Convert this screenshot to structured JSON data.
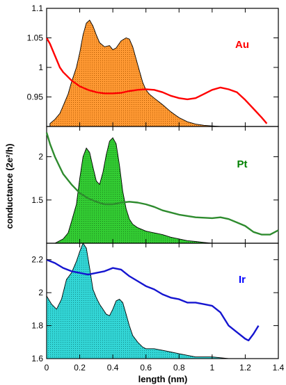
{
  "chart_data": {
    "type": "line",
    "xlabel": "length (nm)",
    "ylabel": "conductance (2e²/h)",
    "x_ticks": [
      "0",
      "0.2",
      "0.4",
      "0.6",
      "0.8",
      "1",
      "1.2",
      "1.4"
    ],
    "xlim": [
      0,
      1.4
    ],
    "panels": [
      {
        "label": "Au",
        "label_color": "#ff0000",
        "line_color": "#ff0000",
        "fill_color": "#ff9933",
        "ylim": [
          0.9,
          1.1
        ],
        "y_ticks": [
          {
            "value": 0.95,
            "label": "0.95"
          },
          {
            "value": 1.0,
            "label": "1"
          },
          {
            "value": 1.05,
            "label": "1.05"
          },
          {
            "value": 1.1,
            "label": "1.1"
          }
        ],
        "conductance": {
          "x": [
            0.0,
            0.02,
            0.05,
            0.08,
            0.1,
            0.15,
            0.2,
            0.25,
            0.3,
            0.35,
            0.4,
            0.45,
            0.5,
            0.55,
            0.6,
            0.65,
            0.7,
            0.75,
            0.8,
            0.85,
            0.9,
            0.95,
            1.0,
            1.05,
            1.1,
            1.15,
            1.2,
            1.25,
            1.3,
            1.33
          ],
          "y": [
            1.05,
            1.04,
            1.02,
            1.0,
            0.992,
            0.978,
            0.968,
            0.962,
            0.958,
            0.956,
            0.956,
            0.957,
            0.96,
            0.962,
            0.963,
            0.962,
            0.958,
            0.952,
            0.948,
            0.946,
            0.948,
            0.955,
            0.962,
            0.966,
            0.963,
            0.958,
            0.945,
            0.93,
            0.915,
            0.905
          ]
        },
        "histogram": {
          "x": [
            0.02,
            0.05,
            0.08,
            0.1,
            0.13,
            0.15,
            0.18,
            0.2,
            0.22,
            0.24,
            0.26,
            0.28,
            0.3,
            0.32,
            0.35,
            0.38,
            0.4,
            0.42,
            0.45,
            0.48,
            0.5,
            0.52,
            0.55,
            0.58,
            0.6,
            0.62,
            0.65,
            0.7,
            0.75,
            0.8,
            0.85,
            0.9,
            0.95,
            1.0,
            1.05
          ],
          "y": [
            0.905,
            0.912,
            0.922,
            0.935,
            0.955,
            0.975,
            1.0,
            1.025,
            1.055,
            1.075,
            1.08,
            1.07,
            1.055,
            1.042,
            1.035,
            1.037,
            1.03,
            1.033,
            1.045,
            1.05,
            1.048,
            1.035,
            1.005,
            0.975,
            0.962,
            0.955,
            0.948,
            0.937,
            0.925,
            0.915,
            0.908,
            0.904,
            0.902,
            0.901,
            0.9
          ]
        }
      },
      {
        "label": "Pt",
        "label_color": "#008000",
        "line_color": "#2e8b2e",
        "fill_color": "#33cc33",
        "ylim": [
          1.0,
          2.35
        ],
        "y_ticks": [
          {
            "value": 1.5,
            "label": "1.5"
          },
          {
            "value": 2.0,
            "label": "2"
          }
        ],
        "conductance": {
          "x": [
            0.0,
            0.02,
            0.05,
            0.08,
            0.1,
            0.15,
            0.2,
            0.25,
            0.3,
            0.35,
            0.4,
            0.45,
            0.5,
            0.55,
            0.6,
            0.65,
            0.7,
            0.8,
            0.9,
            1.0,
            1.05,
            1.1,
            1.15,
            1.2,
            1.25,
            1.3,
            1.35,
            1.4
          ],
          "y": [
            2.28,
            2.15,
            2.0,
            1.88,
            1.8,
            1.68,
            1.58,
            1.52,
            1.48,
            1.45,
            1.45,
            1.47,
            1.48,
            1.47,
            1.45,
            1.42,
            1.38,
            1.33,
            1.3,
            1.29,
            1.3,
            1.28,
            1.24,
            1.2,
            1.13,
            1.1,
            1.1,
            1.15
          ]
        },
        "histogram": {
          "x": [
            0.05,
            0.1,
            0.13,
            0.15,
            0.18,
            0.2,
            0.22,
            0.24,
            0.26,
            0.28,
            0.3,
            0.32,
            0.34,
            0.36,
            0.38,
            0.4,
            0.42,
            0.44,
            0.46,
            0.48,
            0.5,
            0.52,
            0.55,
            0.6,
            0.65,
            0.7,
            0.75,
            0.8,
            0.85,
            0.9,
            0.95,
            1.0
          ],
          "y": [
            1.0,
            1.05,
            1.12,
            1.25,
            1.45,
            1.75,
            2.0,
            2.1,
            2.05,
            1.88,
            1.72,
            1.68,
            1.82,
            2.02,
            2.18,
            2.22,
            2.15,
            1.9,
            1.6,
            1.4,
            1.28,
            1.22,
            1.18,
            1.14,
            1.12,
            1.1,
            1.07,
            1.05,
            1.03,
            1.02,
            1.01,
            1.0
          ]
        }
      },
      {
        "label": "Ir",
        "label_color": "#0000ff",
        "line_color": "#1515d0",
        "fill_color": "#33d6d6",
        "ylim": [
          1.6,
          2.3
        ],
        "y_ticks": [
          {
            "value": 1.6,
            "label": "1.6"
          },
          {
            "value": 1.8,
            "label": "1.8"
          },
          {
            "value": 2.0,
            "label": "2"
          },
          {
            "value": 2.2,
            "label": "2.2"
          }
        ],
        "conductance": {
          "x": [
            0.0,
            0.05,
            0.1,
            0.15,
            0.2,
            0.25,
            0.3,
            0.35,
            0.4,
            0.45,
            0.5,
            0.55,
            0.6,
            0.65,
            0.7,
            0.75,
            0.8,
            0.85,
            0.9,
            0.95,
            1.0,
            1.05,
            1.1,
            1.15,
            1.2,
            1.22,
            1.25,
            1.28
          ],
          "y": [
            2.2,
            2.18,
            2.15,
            2.13,
            2.12,
            2.11,
            2.12,
            2.13,
            2.15,
            2.14,
            2.1,
            2.07,
            2.04,
            2.02,
            1.99,
            1.97,
            1.96,
            1.94,
            1.94,
            1.93,
            1.92,
            1.88,
            1.8,
            1.76,
            1.72,
            1.71,
            1.75,
            1.8
          ]
        },
        "histogram": {
          "x": [
            0.0,
            0.03,
            0.06,
            0.09,
            0.12,
            0.15,
            0.18,
            0.2,
            0.22,
            0.24,
            0.26,
            0.28,
            0.3,
            0.32,
            0.34,
            0.36,
            0.38,
            0.4,
            0.42,
            0.44,
            0.46,
            0.48,
            0.5,
            0.52,
            0.55,
            0.58,
            0.6,
            0.65,
            0.7,
            0.75,
            0.8,
            0.85,
            0.9,
            1.0,
            1.1,
            1.2,
            1.25
          ],
          "y": [
            1.98,
            1.93,
            1.9,
            1.96,
            2.08,
            2.12,
            2.19,
            2.25,
            2.3,
            2.27,
            2.15,
            2.02,
            1.97,
            1.93,
            1.9,
            1.87,
            1.86,
            1.9,
            1.95,
            1.96,
            1.94,
            1.87,
            1.8,
            1.74,
            1.7,
            1.67,
            1.66,
            1.66,
            1.65,
            1.64,
            1.63,
            1.62,
            1.61,
            1.61,
            1.6,
            1.6,
            1.6
          ]
        }
      }
    ]
  }
}
